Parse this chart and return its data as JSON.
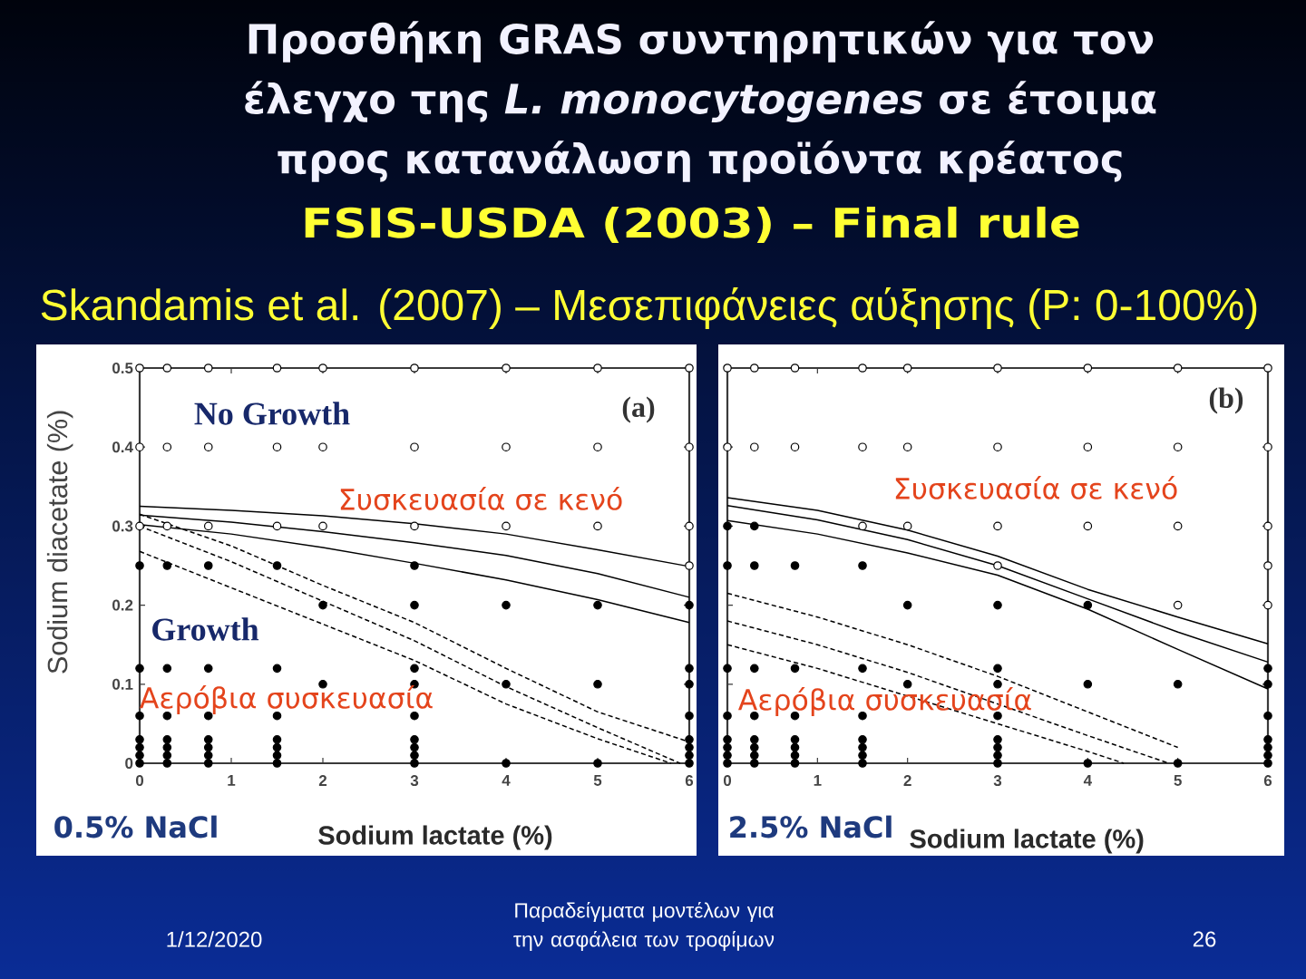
{
  "chart_data": [
    {
      "type": "scatter",
      "title": "Προσθήκη GRAS συντηρητικών για τον έλεγχο της *L. monocytogenes* σε έτοιμα προς κατανάλωση προϊόντα κρέατος",
      "subtitle": "FSIS-USDA (2003) – Final rule",
      "xlabel": "Sodium lactate (%)",
      "ylabel": "Sodium diacetate (%)",
      "xlim": [
        0,
        6
      ],
      "ylim": [
        0,
        0.5
      ],
      "xticks": [
        0,
        1,
        2,
        3,
        4,
        5,
        6
      ],
      "yticks": [
        0,
        0.1,
        0.2,
        0.3,
        0.4,
        0.5
      ],
      "annotations": [
        "Skandamis et al. (2007) – Μεσεπιφάνειες αύξησης (P: 0-100%)",
        "(a)",
        "0.5% NaCl",
        "No Growth",
        "Growth",
        "Συσκευασία σε κενό",
        "Αερόβια συσκευασία",
        "1/12/2020",
        "Παραδείγματα μοντέλων για την ασφάλεια των τροφίμων",
        "26"
      ],
      "series": [
        {
          "color": "#ffffff",
          "marker": "circle",
          "x": [
            0,
            0,
            0,
            0.3,
            0.3,
            0.3,
            0.75,
            0.75,
            0.75,
            1.5,
            1.5,
            1.5,
            2,
            2,
            2,
            3,
            3,
            3,
            4,
            4,
            4,
            5,
            5,
            5,
            6,
            6,
            6,
            6
          ],
          "values": [
            0.5,
            0.4,
            0.3,
            0.5,
            0.4,
            0.3,
            0.5,
            0.4,
            0.3,
            0.5,
            0.4,
            0.3,
            0.5,
            0.4,
            0.3,
            0.5,
            0.4,
            0.3,
            0.5,
            0.4,
            0.3,
            0.5,
            0.4,
            0.3,
            0.5,
            0.4,
            0.3,
            0.25
          ]
        },
        {
          "color": "#000000",
          "marker": "circle",
          "x": [
            0,
            0,
            0,
            0,
            0,
            0,
            0,
            0.3,
            0.3,
            0.3,
            0.3,
            0.3,
            0.3,
            0.3,
            0.75,
            0.75,
            0.75,
            0.75,
            0.75,
            0.75,
            0.75,
            1.5,
            1.5,
            1.5,
            1.5,
            1.5,
            1.5,
            1.5,
            2,
            2,
            3,
            3,
            3,
            3,
            3,
            3,
            3,
            3,
            3,
            4,
            4,
            4,
            5,
            5,
            5,
            6,
            6,
            6,
            6,
            6,
            6,
            6,
            6
          ],
          "values": [
            0.25,
            0.12,
            0.06,
            0.03,
            0.02,
            0.01,
            0,
            0.25,
            0.12,
            0.06,
            0.03,
            0.02,
            0.01,
            0,
            0.25,
            0.12,
            0.06,
            0.03,
            0.02,
            0.01,
            0,
            0.25,
            0.12,
            0.06,
            0.03,
            0.02,
            0.01,
            0,
            0.2,
            0.1,
            0.25,
            0.2,
            0.12,
            0.1,
            0.06,
            0.03,
            0.02,
            0.01,
            0,
            0.2,
            0.1,
            0,
            0.2,
            0.1,
            0,
            0.2,
            0.12,
            0.1,
            0.06,
            0.03,
            0.02,
            0.01,
            0
          ]
        },
        {
          "type": "line",
          "line_style": "solid",
          "color": "#000000",
          "x": [
            0,
            1,
            2,
            3,
            4,
            5,
            6
          ],
          "values": [
            0.325,
            0.32,
            0.313,
            0.303,
            0.29,
            0.27,
            0.249
          ]
        },
        {
          "type": "line",
          "line_style": "solid",
          "color": "#000000",
          "x": [
            0,
            1,
            2,
            3,
            4,
            5,
            6
          ],
          "values": [
            0.314,
            0.305,
            0.293,
            0.279,
            0.263,
            0.24,
            0.21
          ]
        },
        {
          "type": "line",
          "line_style": "solid",
          "color": "#000000",
          "x": [
            0,
            1,
            2,
            3,
            4,
            5,
            6
          ],
          "values": [
            0.302,
            0.29,
            0.273,
            0.253,
            0.232,
            0.207,
            0.178
          ]
        },
        {
          "type": "line",
          "line_style": "dashed",
          "color": "#000000",
          "x": [
            0,
            1,
            2,
            3,
            4,
            5,
            6
          ],
          "values": [
            0.315,
            0.275,
            0.225,
            0.178,
            0.12,
            0.065,
            0.027
          ]
        },
        {
          "type": "line",
          "line_style": "dashed",
          "color": "#000000",
          "x": [
            0,
            1,
            2,
            3,
            4,
            5,
            5.9
          ],
          "values": [
            0.3,
            0.255,
            0.205,
            0.155,
            0.097,
            0.045,
            0
          ]
        },
        {
          "type": "line",
          "line_style": "dashed",
          "color": "#000000",
          "x": [
            0,
            1,
            2,
            3,
            4,
            5,
            5.8
          ],
          "values": [
            0.268,
            0.222,
            0.176,
            0.13,
            0.075,
            0.031,
            0
          ]
        }
      ]
    },
    {
      "type": "scatter",
      "xlabel": "Sodium lactate (%)",
      "xlim": [
        0,
        6
      ],
      "ylim": [
        0,
        0.5
      ],
      "xticks": [
        0,
        1,
        2,
        3,
        4,
        5,
        6
      ],
      "yticks": [
        0,
        0.1,
        0.2,
        0.3,
        0.4,
        0.5
      ],
      "tick_labels": "x",
      "annotations": [
        "(b)",
        "2.5% NaCl",
        "Συσκευασία σε κενό",
        "Αερόβια συσκευασία"
      ],
      "series": [
        {
          "color": "#ffffff",
          "marker": "circle",
          "x": [
            0,
            0,
            0.3,
            0.3,
            0.75,
            0.75,
            1.5,
            1.5,
            1.5,
            2,
            2,
            2,
            3,
            3,
            3,
            3,
            4,
            4,
            4,
            5,
            5,
            5,
            5,
            6,
            6,
            6,
            6,
            6
          ],
          "values": [
            0.5,
            0.4,
            0.5,
            0.4,
            0.5,
            0.4,
            0.5,
            0.4,
            0.3,
            0.5,
            0.4,
            0.3,
            0.5,
            0.4,
            0.3,
            0.25,
            0.5,
            0.4,
            0.3,
            0.5,
            0.4,
            0.3,
            0.2,
            0.5,
            0.4,
            0.3,
            0.25,
            0.2
          ]
        },
        {
          "color": "#000000",
          "marker": "circle",
          "x": [
            0,
            0,
            0,
            0,
            0,
            0,
            0,
            0,
            0.3,
            0.3,
            0.3,
            0.3,
            0.3,
            0.3,
            0.3,
            0.3,
            0.75,
            0.75,
            0.75,
            0.75,
            0.75,
            0.75,
            0.75,
            1.5,
            1.5,
            1.5,
            1.5,
            1.5,
            1.5,
            1.5,
            2,
            2,
            3,
            3,
            3,
            3,
            3,
            3,
            3,
            3,
            4,
            4,
            4,
            5,
            5,
            6,
            6,
            6,
            6,
            6,
            6,
            6
          ],
          "values": [
            0.3,
            0.25,
            0.12,
            0.06,
            0.03,
            0.02,
            0.01,
            0,
            0.3,
            0.25,
            0.12,
            0.06,
            0.03,
            0.02,
            0.01,
            0,
            0.25,
            0.12,
            0.06,
            0.03,
            0.02,
            0.01,
            0,
            0.25,
            0.12,
            0.06,
            0.03,
            0.02,
            0.01,
            0,
            0.2,
            0.1,
            0.2,
            0.12,
            0.1,
            0.06,
            0.03,
            0.02,
            0.01,
            0,
            0.2,
            0.1,
            0,
            0.1,
            0,
            0.12,
            0.1,
            0.06,
            0.03,
            0.02,
            0.01,
            0
          ]
        },
        {
          "type": "line",
          "line_style": "solid",
          "color": "#000000",
          "x": [
            0,
            1,
            2,
            3,
            4,
            5,
            6
          ],
          "values": [
            0.336,
            0.32,
            0.295,
            0.262,
            0.22,
            0.185,
            0.151
          ]
        },
        {
          "type": "line",
          "line_style": "solid",
          "color": "#000000",
          "x": [
            0,
            1,
            2,
            3,
            4,
            5,
            6
          ],
          "values": [
            0.326,
            0.308,
            0.283,
            0.25,
            0.208,
            0.166,
            0.128
          ]
        },
        {
          "type": "line",
          "line_style": "solid",
          "color": "#000000",
          "x": [
            0,
            1,
            2,
            3,
            4,
            5,
            6
          ],
          "values": [
            0.307,
            0.29,
            0.266,
            0.238,
            0.195,
            0.144,
            0.094
          ]
        },
        {
          "type": "line",
          "line_style": "dashed",
          "color": "#000000",
          "x": [
            0,
            1,
            2,
            3,
            4,
            5
          ],
          "values": [
            0.215,
            0.185,
            0.15,
            0.11,
            0.065,
            0.02
          ]
        },
        {
          "type": "line",
          "line_style": "dashed",
          "color": "#000000",
          "x": [
            0,
            1,
            2,
            3,
            4,
            4.9
          ],
          "values": [
            0.18,
            0.15,
            0.115,
            0.075,
            0.035,
            0
          ]
        },
        {
          "type": "line",
          "line_style": "dashed",
          "color": "#000000",
          "x": [
            0,
            1,
            2,
            3,
            4,
            4.4
          ],
          "values": [
            0.15,
            0.12,
            0.085,
            0.05,
            0.015,
            0
          ]
        }
      ]
    }
  ]
}
